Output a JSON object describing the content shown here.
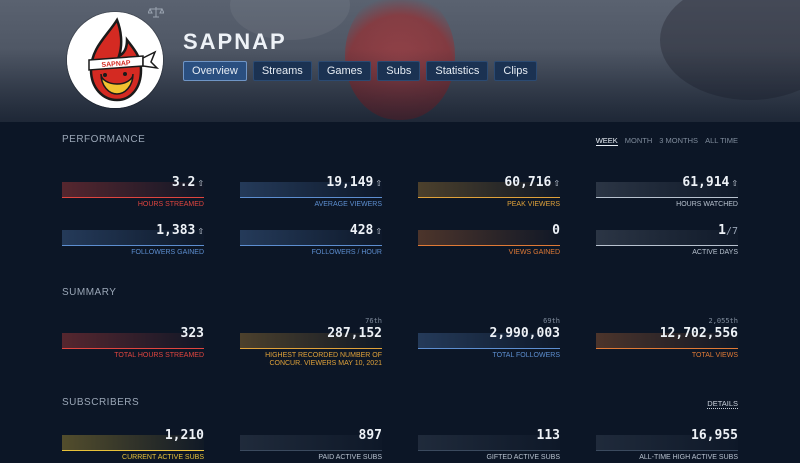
{
  "channel": {
    "name": "SAPNAP"
  },
  "tabs": [
    {
      "label": "Overview",
      "active": true
    },
    {
      "label": "Streams",
      "active": false
    },
    {
      "label": "Games",
      "active": false
    },
    {
      "label": "Subs",
      "active": false
    },
    {
      "label": "Statistics",
      "active": false
    },
    {
      "label": "Clips",
      "active": false
    }
  ],
  "avatar": {
    "headband_text": "SAPNAP"
  },
  "performance": {
    "title": "PERFORMANCE",
    "ranges": [
      "WEEK",
      "MONTH",
      "3 MONTHS",
      "ALL TIME"
    ],
    "active_range": "WEEK",
    "stats": [
      {
        "value": "3.2",
        "arrow": "⇧",
        "label": "HOURS STREAMED",
        "color": "#e0453f"
      },
      {
        "value": "19,149",
        "arrow": "⇧",
        "label": "AVERAGE VIEWERS",
        "color": "#5d8ed0"
      },
      {
        "value": "60,716",
        "arrow": "⇧",
        "label": "PEAK VIEWERS",
        "color": "#e0a23a"
      },
      {
        "value": "61,914",
        "arrow": "⇧",
        "label": "HOURS WATCHED",
        "color": "#b8c2cf"
      },
      {
        "value": "1,383",
        "arrow": "⇧",
        "label": "FOLLOWERS GAINED",
        "color": "#5d8ed0"
      },
      {
        "value": "428",
        "arrow": "⇧",
        "label": "FOLLOWERS / HOUR",
        "color": "#5d8ed0"
      },
      {
        "value": "0",
        "arrow": "",
        "label": "VIEWS GAINED",
        "color": "#e07a36"
      },
      {
        "value": "1",
        "suffix": "/7",
        "label": "ACTIVE DAYS",
        "color": "#b8c2cf"
      }
    ]
  },
  "summary": {
    "title": "SUMMARY",
    "stats": [
      {
        "value": "323",
        "rank": "",
        "label": "TOTAL HOURS STREAMED",
        "color": "#e0453f"
      },
      {
        "value": "287,152",
        "rank": "76th",
        "label_line1": "HIGHEST RECORDED NUMBER OF",
        "label_line2": "CONCUR. VIEWERS MAY 10, 2021",
        "color": "#e0a23a"
      },
      {
        "value": "2,990,003",
        "rank": "69th",
        "label": "TOTAL FOLLOWERS",
        "color": "#5d8ed0"
      },
      {
        "value": "12,702,556",
        "rank": "2,055th",
        "label": "TOTAL VIEWS",
        "color": "#e07a36"
      }
    ]
  },
  "subscribers": {
    "title": "SUBSCRIBERS",
    "details_label": "DETAILS",
    "stats": [
      {
        "value": "1,210",
        "label": "CURRENT ACTIVE SUBS",
        "color": "#e8c23a"
      },
      {
        "value": "897",
        "label": "PAID ACTIVE SUBS",
        "color": "#b8c2cf"
      },
      {
        "value": "113",
        "label": "GIFTED ACTIVE SUBS",
        "color": "#b8c2cf"
      },
      {
        "value": "16,955",
        "label": "ALL-TIME HIGH ACTIVE SUBS",
        "color": "#b8c2cf"
      }
    ]
  }
}
